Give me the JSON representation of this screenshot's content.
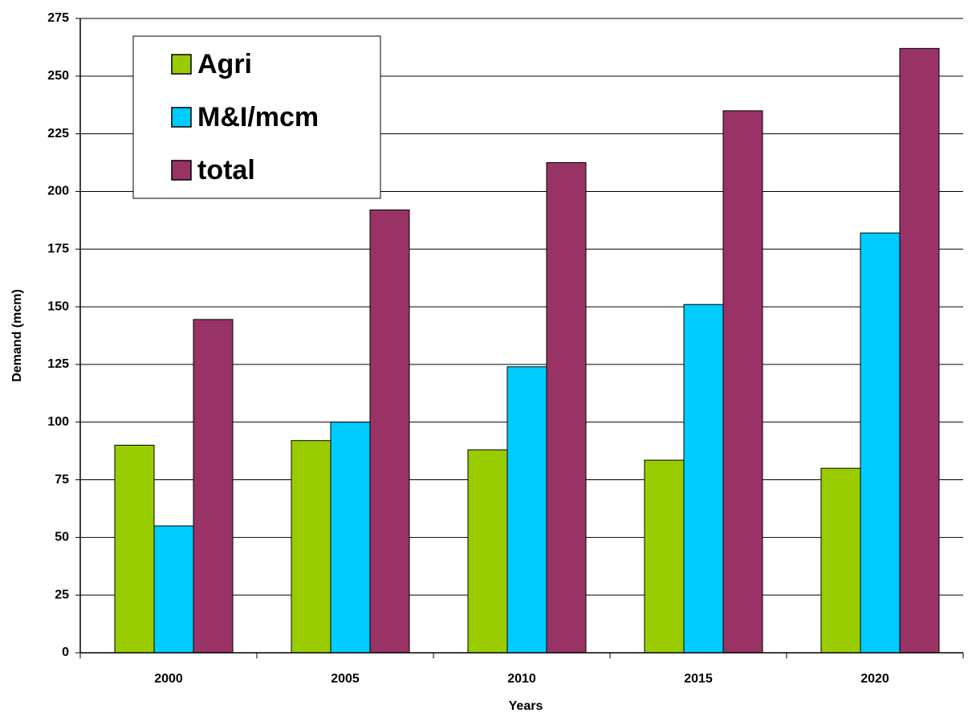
{
  "chart_data": {
    "type": "bar",
    "xlabel": "Years",
    "ylabel": "Demand (mcm)",
    "categories": [
      "2000",
      "2005",
      "2010",
      "2015",
      "2020"
    ],
    "series": [
      {
        "name": "Agri",
        "color": "#99cc00",
        "values": [
          90,
          92,
          88,
          83.5,
          80
        ]
      },
      {
        "name": "M&I/mcm",
        "color": "#00ccff",
        "values": [
          55,
          100,
          124,
          151,
          182
        ]
      },
      {
        "name": "total",
        "color": "#993366",
        "values": [
          144.5,
          192,
          212.5,
          235,
          262
        ]
      }
    ],
    "ylim": [
      0,
      275
    ],
    "yticks": [
      0,
      25,
      50,
      75,
      100,
      125,
      150,
      175,
      200,
      225,
      250,
      275
    ],
    "grid": true,
    "legend": "top-left"
  }
}
